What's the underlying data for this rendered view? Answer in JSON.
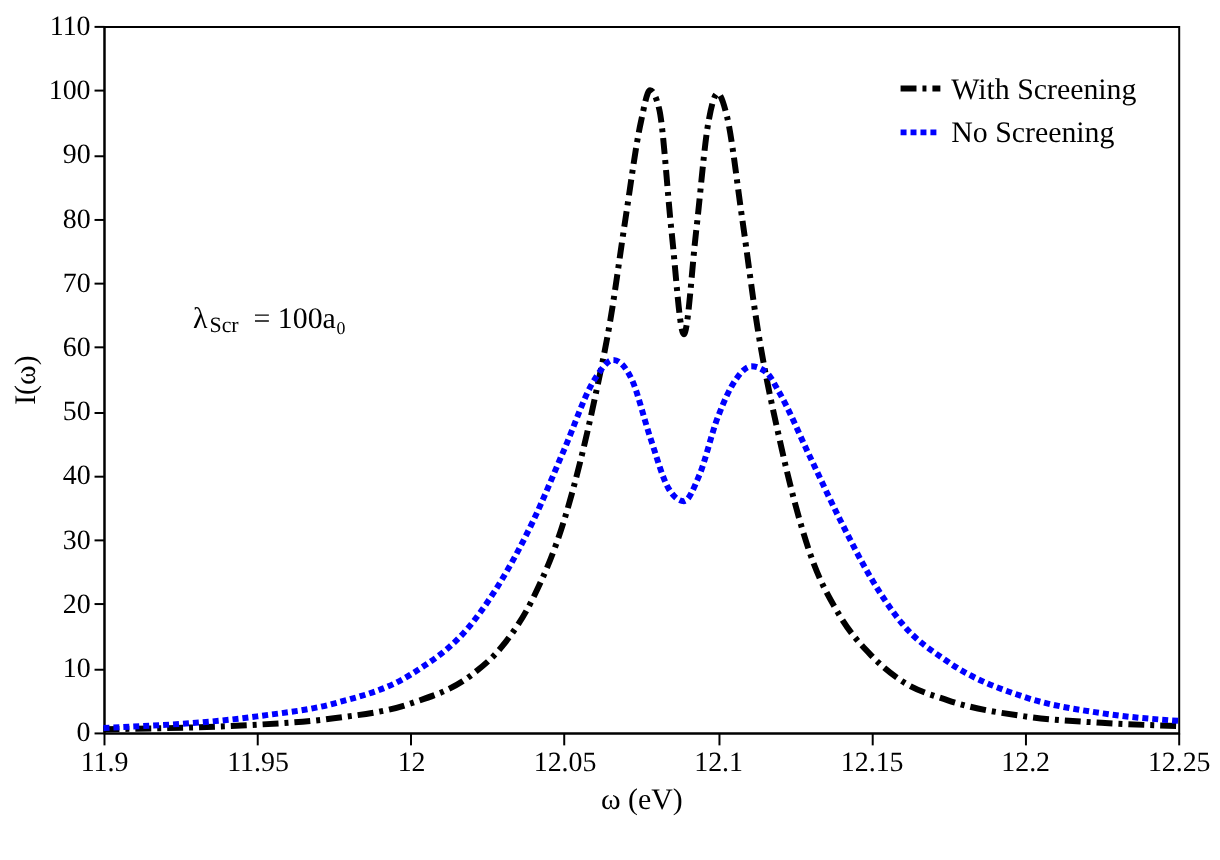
{
  "chart_data": {
    "type": "line",
    "xlabel": "ω (eV)",
    "ylabel": "I(ω)",
    "xlim": [
      11.9,
      12.25
    ],
    "xticks": [
      11.9,
      11.95,
      12,
      12.05,
      12.1,
      12.15,
      12.2,
      12.25
    ],
    "ylim": [
      0,
      110
    ],
    "yticks": [
      0,
      10,
      20,
      30,
      40,
      50,
      60,
      70,
      80,
      90,
      100,
      110
    ],
    "grid": false,
    "legend": "top right",
    "marker": "none",
    "annotations": [
      "λ$_{Scr}$ = 100a₀"
    ],
    "series": [
      {
        "name": "With Screening",
        "color": "#000000",
        "line_style": "dashed",
        "x": [
          11.9,
          11.95,
          11.975,
          12.0,
          12.02,
          12.03,
          12.04,
          12.05,
          12.06,
          12.065,
          12.07,
          12.075,
          12.078,
          12.081,
          12.085,
          12.089,
          12.093,
          12.097,
          12.1,
          12.103,
          12.108,
          12.113,
          12.12,
          12.13,
          12.14,
          12.15,
          12.16,
          12.175,
          12.2,
          12.225,
          12.25
        ],
        "values": [
          0.5,
          1.2,
          2.2,
          4.5,
          9,
          13.5,
          21,
          33,
          52,
          64,
          80,
          95,
          100,
          97,
          78,
          62,
          78,
          95,
          99.5,
          96,
          80,
          63,
          46,
          28,
          18,
          12,
          8,
          5,
          2.5,
          1.5,
          1
        ]
      },
      {
        "name": "No Screening",
        "color": "#0000ff",
        "line_style": "dotted",
        "x": [
          11.9,
          11.95,
          11.975,
          12.0,
          12.02,
          12.03,
          12.04,
          12.05,
          12.06,
          12.066,
          12.072,
          12.078,
          12.084,
          12.089,
          12.094,
          12.1,
          12.106,
          12.111,
          12.116,
          12.12,
          12.13,
          12.14,
          12.15,
          12.16,
          12.175,
          12.2,
          12.225,
          12.25
        ],
        "values": [
          0.7,
          2.5,
          4.5,
          9,
          17,
          24,
          33,
          44,
          55,
          58,
          55,
          46,
          38,
          36,
          40,
          49,
          55,
          57,
          56,
          53,
          43,
          33,
          24,
          17,
          11,
          5.5,
          3,
          1.8
        ]
      }
    ]
  }
}
